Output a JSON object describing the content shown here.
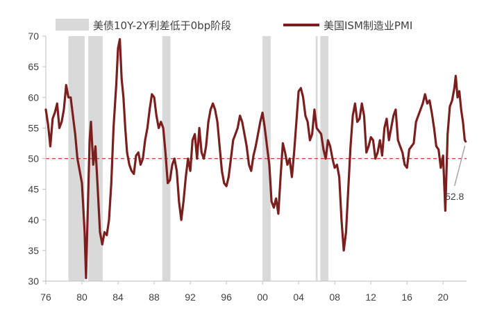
{
  "chart_data": {
    "type": "line",
    "title": "",
    "xlabel": "",
    "ylabel": "",
    "ylim": [
      30,
      70
    ],
    "yticks": [
      30,
      35,
      40,
      45,
      50,
      55,
      60,
      65,
      70
    ],
    "xlim": [
      1976.0,
      2022.6
    ],
    "xtick_labels": [
      "76",
      "80",
      "84",
      "88",
      "92",
      "96",
      "00",
      "04",
      "08",
      "12",
      "16",
      "20"
    ],
    "xtick_years": [
      1976,
      1980,
      1984,
      1988,
      1992,
      1996,
      2000,
      2004,
      2008,
      2012,
      2016,
      2020
    ],
    "grid": false,
    "legend_position": "top",
    "legend": {
      "shade_label": "美债10Y-2Y利差低于0bp阶段",
      "line_label": "美国ISM制造业PMI"
    },
    "colors": {
      "line": "#7b1e1e",
      "shade": "#d9d9d9",
      "reference": "#c0392b",
      "axis": "#bfbfbf",
      "annotation": "#a6a6a6"
    },
    "reference_line": {
      "y": 50,
      "style": "dashed"
    },
    "shaded_periods": [
      [
        1978.5,
        1980.3
      ],
      [
        1980.7,
        1982.3
      ],
      [
        1988.9,
        1989.8
      ],
      [
        2000.0,
        2000.9
      ],
      [
        2005.9,
        2006.1
      ],
      [
        2006.4,
        2007.3
      ]
    ],
    "series": [
      {
        "name": "美国ISM制造业PMI",
        "points": [
          [
            1976.0,
            58
          ],
          [
            1976.25,
            55.5
          ],
          [
            1976.5,
            52
          ],
          [
            1976.75,
            56.5
          ],
          [
            1977.0,
            57.5
          ],
          [
            1977.25,
            59
          ],
          [
            1977.5,
            55
          ],
          [
            1977.75,
            56
          ],
          [
            1978.0,
            58
          ],
          [
            1978.25,
            62
          ],
          [
            1978.5,
            60
          ],
          [
            1978.75,
            60
          ],
          [
            1979.0,
            57
          ],
          [
            1979.25,
            54
          ],
          [
            1979.5,
            50
          ],
          [
            1979.75,
            48
          ],
          [
            1980.0,
            46
          ],
          [
            1980.3,
            38
          ],
          [
            1980.45,
            30.5
          ],
          [
            1980.6,
            39
          ],
          [
            1980.85,
            53
          ],
          [
            1981.0,
            56
          ],
          [
            1981.25,
            49
          ],
          [
            1981.5,
            52
          ],
          [
            1981.75,
            45
          ],
          [
            1982.0,
            38
          ],
          [
            1982.25,
            36
          ],
          [
            1982.5,
            38
          ],
          [
            1982.75,
            37.5
          ],
          [
            1983.0,
            40
          ],
          [
            1983.25,
            46
          ],
          [
            1983.5,
            55
          ],
          [
            1983.8,
            62
          ],
          [
            1984.0,
            68
          ],
          [
            1984.2,
            69.5
          ],
          [
            1984.4,
            63
          ],
          [
            1984.6,
            60
          ],
          [
            1984.8,
            55
          ],
          [
            1985.0,
            51
          ],
          [
            1985.25,
            49
          ],
          [
            1985.5,
            48
          ],
          [
            1985.75,
            47.5
          ],
          [
            1986.0,
            50.5
          ],
          [
            1986.25,
            51
          ],
          [
            1986.5,
            49
          ],
          [
            1986.75,
            50
          ],
          [
            1987.0,
            53
          ],
          [
            1987.25,
            55
          ],
          [
            1987.5,
            58
          ],
          [
            1987.75,
            60.5
          ],
          [
            1988.0,
            60
          ],
          [
            1988.25,
            57
          ],
          [
            1988.5,
            55
          ],
          [
            1988.75,
            56
          ],
          [
            1989.0,
            55
          ],
          [
            1989.25,
            51
          ],
          [
            1989.5,
            46
          ],
          [
            1989.75,
            46.5
          ],
          [
            1990.0,
            49
          ],
          [
            1990.25,
            50
          ],
          [
            1990.5,
            48
          ],
          [
            1990.75,
            43
          ],
          [
            1991.0,
            40
          ],
          [
            1991.25,
            43
          ],
          [
            1991.5,
            47
          ],
          [
            1991.75,
            50
          ],
          [
            1992.0,
            48
          ],
          [
            1992.25,
            53
          ],
          [
            1992.5,
            54
          ],
          [
            1992.75,
            50
          ],
          [
            1993.0,
            55
          ],
          [
            1993.25,
            51
          ],
          [
            1993.5,
            50
          ],
          [
            1993.75,
            52
          ],
          [
            1994.0,
            56
          ],
          [
            1994.25,
            58
          ],
          [
            1994.5,
            59
          ],
          [
            1994.75,
            58
          ],
          [
            1995.0,
            56
          ],
          [
            1995.25,
            52
          ],
          [
            1995.5,
            48
          ],
          [
            1995.75,
            46
          ],
          [
            1996.0,
            45.5
          ],
          [
            1996.25,
            47
          ],
          [
            1996.5,
            50
          ],
          [
            1996.75,
            53
          ],
          [
            1997.0,
            54
          ],
          [
            1997.25,
            55
          ],
          [
            1997.5,
            57
          ],
          [
            1997.75,
            56
          ],
          [
            1998.0,
            54
          ],
          [
            1998.25,
            52
          ],
          [
            1998.5,
            49
          ],
          [
            1998.75,
            48
          ],
          [
            1999.0,
            50.5
          ],
          [
            1999.25,
            52
          ],
          [
            1999.5,
            54
          ],
          [
            1999.75,
            56
          ],
          [
            2000.0,
            57.5
          ],
          [
            2000.25,
            55
          ],
          [
            2000.5,
            52
          ],
          [
            2000.75,
            49
          ],
          [
            2001.0,
            43
          ],
          [
            2001.25,
            42
          ],
          [
            2001.5,
            43.5
          ],
          [
            2001.75,
            41
          ],
          [
            2002.0,
            47
          ],
          [
            2002.25,
            52.5
          ],
          [
            2002.5,
            51
          ],
          [
            2002.75,
            49
          ],
          [
            2003.0,
            50
          ],
          [
            2003.25,
            47
          ],
          [
            2003.5,
            51
          ],
          [
            2003.75,
            56
          ],
          [
            2004.0,
            61
          ],
          [
            2004.25,
            61.5
          ],
          [
            2004.5,
            60
          ],
          [
            2004.75,
            57
          ],
          [
            2005.0,
            56
          ],
          [
            2005.25,
            53
          ],
          [
            2005.5,
            54
          ],
          [
            2005.75,
            58
          ],
          [
            2006.0,
            55
          ],
          [
            2006.25,
            54.5
          ],
          [
            2006.5,
            54
          ],
          [
            2006.75,
            51.5
          ],
          [
            2007.0,
            50
          ],
          [
            2007.25,
            53
          ],
          [
            2007.5,
            52
          ],
          [
            2007.75,
            50
          ],
          [
            2008.0,
            48.5
          ],
          [
            2008.25,
            49
          ],
          [
            2008.5,
            47
          ],
          [
            2008.75,
            40
          ],
          [
            2009.0,
            35
          ],
          [
            2009.25,
            38
          ],
          [
            2009.5,
            45
          ],
          [
            2009.75,
            52
          ],
          [
            2010.0,
            57
          ],
          [
            2010.25,
            59
          ],
          [
            2010.5,
            56
          ],
          [
            2010.75,
            56.5
          ],
          [
            2011.0,
            59
          ],
          [
            2011.25,
            57
          ],
          [
            2011.5,
            51
          ],
          [
            2011.75,
            52
          ],
          [
            2012.0,
            53.5
          ],
          [
            2012.25,
            53
          ],
          [
            2012.5,
            50
          ],
          [
            2012.75,
            51
          ],
          [
            2013.0,
            53
          ],
          [
            2013.25,
            50.5
          ],
          [
            2013.5,
            55
          ],
          [
            2013.75,
            56.5
          ],
          [
            2014.0,
            53
          ],
          [
            2014.25,
            55
          ],
          [
            2014.5,
            57
          ],
          [
            2014.75,
            58
          ],
          [
            2015.0,
            53
          ],
          [
            2015.25,
            52
          ],
          [
            2015.5,
            51
          ],
          [
            2015.75,
            49
          ],
          [
            2016.0,
            48.5
          ],
          [
            2016.25,
            51.5
          ],
          [
            2016.5,
            52
          ],
          [
            2016.75,
            52.5
          ],
          [
            2017.0,
            56
          ],
          [
            2017.25,
            57
          ],
          [
            2017.5,
            58
          ],
          [
            2017.75,
            59
          ],
          [
            2018.0,
            60.5
          ],
          [
            2018.25,
            59
          ],
          [
            2018.5,
            59.5
          ],
          [
            2018.75,
            57.5
          ],
          [
            2019.0,
            55
          ],
          [
            2019.25,
            52
          ],
          [
            2019.5,
            51.5
          ],
          [
            2019.75,
            48.5
          ],
          [
            2020.0,
            50.5
          ],
          [
            2020.25,
            41.5
          ],
          [
            2020.5,
            54
          ],
          [
            2020.75,
            58.5
          ],
          [
            2021.0,
            59.5
          ],
          [
            2021.25,
            61.5
          ],
          [
            2021.4,
            63.5
          ],
          [
            2021.6,
            60
          ],
          [
            2021.8,
            61
          ],
          [
            2022.0,
            58
          ],
          [
            2022.2,
            56
          ],
          [
            2022.4,
            53
          ],
          [
            2022.5,
            52.8
          ]
        ]
      }
    ],
    "annotations": [
      {
        "label": "52.8",
        "x": 2022.5,
        "y": 52.8
      }
    ]
  }
}
